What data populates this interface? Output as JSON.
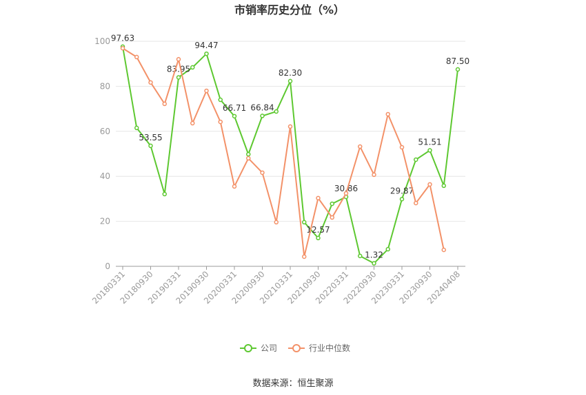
{
  "chart_data": {
    "type": "line",
    "title": "市销率历史分位（%）",
    "source": "数据来源：恒生聚源",
    "categories": [
      "20180331",
      null,
      "20180930",
      null,
      "20190331",
      null,
      "20190930",
      null,
      "20200331",
      null,
      "20200930",
      null,
      "20210331",
      null,
      "20210930",
      null,
      "20220331",
      null,
      "20220930",
      null,
      "20230331",
      null,
      "20230930",
      null,
      "20240408"
    ],
    "series": [
      {
        "name": "公司",
        "color": "#5dc830",
        "values": [
          97.63,
          61.5,
          53.55,
          32.1,
          83.95,
          88.4,
          94.47,
          74.0,
          66.71,
          49.8,
          66.84,
          68.8,
          82.3,
          19.6,
          12.57,
          27.8,
          30.86,
          4.6,
          1.32,
          7.6,
          29.87,
          47.4,
          51.51,
          35.8,
          87.5
        ],
        "value_labels": [
          "97.63",
          null,
          "53.55",
          null,
          "83.95",
          null,
          "94.47",
          null,
          "66.71",
          null,
          "66.84",
          null,
          "82.30",
          null,
          "12.57",
          null,
          "30.86",
          null,
          "1.32",
          null,
          "29.87",
          null,
          "51.51",
          null,
          "87.50"
        ]
      },
      {
        "name": "行业中位数",
        "color": "#f39168",
        "values": [
          96.9,
          93.0,
          81.7,
          72.2,
          92.0,
          63.6,
          78.0,
          64.2,
          35.5,
          48.0,
          41.6,
          19.6,
          62.1,
          4.3,
          30.3,
          21.7,
          32.4,
          53.2,
          40.7,
          67.6,
          52.9,
          28.1,
          36.4,
          7.3,
          null
        ]
      }
    ],
    "ylim": [
      0,
      100
    ],
    "yticks": [
      0,
      20,
      40,
      60,
      80,
      100
    ],
    "grid": true
  }
}
